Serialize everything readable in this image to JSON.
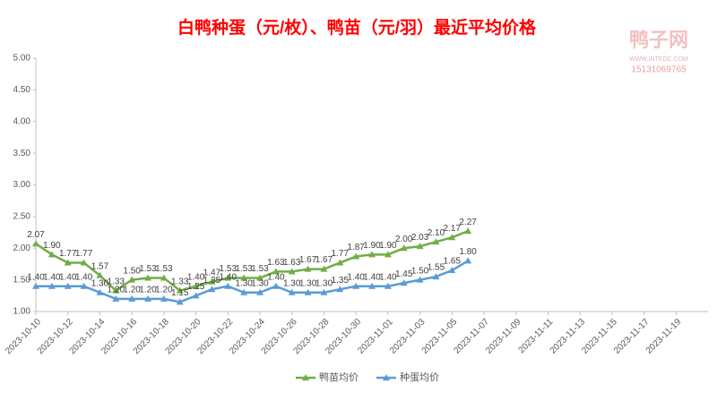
{
  "chart_data": {
    "type": "line",
    "title": "白鸭种蛋（元/枚）、鸭苗（元/羽）最近平均价格",
    "watermark": {
      "name": "鸭子网",
      "site": "WWW.INTEDC.COM",
      "phone": "15131069765"
    },
    "x": [
      "2023-10-10",
      "2023-10-11",
      "2023-10-12",
      "2023-10-13",
      "2023-10-14",
      "2023-10-15",
      "2023-10-16",
      "2023-10-17",
      "2023-10-18",
      "2023-10-19",
      "2023-10-20",
      "2023-10-21",
      "2023-10-22",
      "2023-10-23",
      "2023-10-24",
      "2023-10-25",
      "2023-10-26",
      "2023-10-27",
      "2023-10-28",
      "2023-10-29",
      "2023-10-30",
      "2023-10-31",
      "2023-11-01",
      "2023-11-02",
      "2023-11-03",
      "2023-11-04",
      "2023-11-05",
      "2023-11-06"
    ],
    "xlim": [
      "2023-10-10",
      "2023-11-21"
    ],
    "xticks": [
      "2023-10-10",
      "2023-10-12",
      "2023-10-14",
      "2023-10-16",
      "2023-10-18",
      "2023-10-20",
      "2023-10-22",
      "2023-10-24",
      "2023-10-26",
      "2023-10-28",
      "2023-10-30",
      "2023-11-01",
      "2023-11-03",
      "2023-11-05",
      "2023-11-07",
      "2023-11-09",
      "2023-11-11",
      "2023-11-13",
      "2023-11-15",
      "2023-11-17",
      "2023-11-19"
    ],
    "ylim": [
      1,
      5
    ],
    "yticks": [
      {
        "value": 1,
        "label": "1.00"
      },
      {
        "value": 1.5,
        "label": "1.50"
      },
      {
        "value": 2,
        "label": "2.00"
      },
      {
        "value": 2.5,
        "label": "2.50"
      },
      {
        "value": 3,
        "label": "3.00"
      },
      {
        "value": 3.5,
        "label": "3.50"
      },
      {
        "value": 4,
        "label": "4.00"
      },
      {
        "value": 4.5,
        "label": "4.50"
      },
      {
        "value": 5,
        "label": "5.00"
      }
    ],
    "grid": false,
    "legend": "bottom",
    "series": [
      {
        "name": "鸭苗均价",
        "color": "#70ad47",
        "marker": "triangle",
        "values": [
          2.07,
          1.9,
          1.77,
          1.77,
          1.57,
          1.33,
          1.5,
          1.53,
          1.53,
          1.33,
          1.4,
          1.47,
          1.53,
          1.53,
          1.53,
          1.63,
          1.63,
          1.67,
          1.67,
          1.77,
          1.87,
          1.9,
          1.9,
          2.0,
          2.03,
          2.1,
          2.17,
          2.27
        ],
        "value_labels": [
          "2.07",
          "1.90",
          "1.77",
          "1.77",
          "1.57",
          "1.33",
          "1.50",
          "1.53",
          "1.53",
          "1.33",
          "1.40",
          "1.47",
          "1.53",
          "1.53",
          "1.53",
          "1.63",
          "1.63",
          "1.67",
          "1.67",
          "1.77",
          "1.87",
          "1.90",
          "1.90",
          "2.00",
          "2.03",
          "2.10",
          "2.17",
          "2.27"
        ]
      },
      {
        "name": "种蛋均价",
        "color": "#5b9bd5",
        "marker": "triangle",
        "values": [
          1.4,
          1.4,
          1.4,
          1.4,
          1.3,
          1.2,
          1.2,
          1.2,
          1.2,
          1.15,
          1.25,
          1.35,
          1.4,
          1.3,
          1.3,
          1.4,
          1.3,
          1.3,
          1.3,
          1.35,
          1.4,
          1.4,
          1.4,
          1.45,
          1.5,
          1.55,
          1.65,
          1.8
        ],
        "value_labels": [
          "1.40",
          "1.40",
          "1.40",
          "1.40",
          "1.30",
          "1.20",
          "1.20",
          "1.20",
          "1.20",
          "1.15",
          "1.25",
          "1.35",
          "1.40",
          "1.30",
          "1.30",
          "1.40",
          "1.30",
          "1.30",
          "1.30",
          "1.35",
          "1.40",
          "1.40",
          "1.40",
          "1.45",
          "1.50",
          "1.55",
          "1.65",
          "1.80"
        ]
      }
    ]
  }
}
